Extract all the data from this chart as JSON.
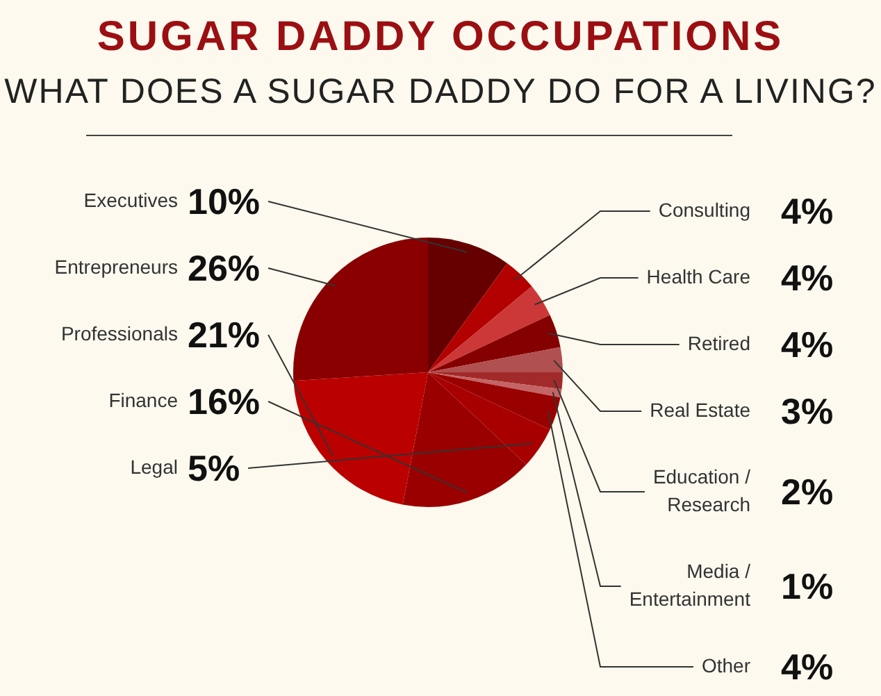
{
  "chart_data": {
    "type": "pie",
    "title": "SUGAR DADDY OCCUPATIONS",
    "subtitle": "WHAT DOES A SUGAR DADDY DO FOR A LIVING?",
    "categories": [
      "Executives",
      "Consulting",
      "Health Care",
      "Retired",
      "Real Estate",
      "Education / Research",
      "Media / Entertainment",
      "Other",
      "Legal",
      "Finance",
      "Professionals",
      "Entrepreneurs"
    ],
    "values": [
      10,
      4,
      4,
      4,
      3,
      2,
      1,
      4,
      5,
      16,
      21,
      26
    ],
    "colors": [
      "#660000",
      "#b30000",
      "#cc3838",
      "#850000",
      "#b05050",
      "#a32a2a",
      "#c46464",
      "#990000",
      "#a80000",
      "#9a0000",
      "#bb0000",
      "#8a0000"
    ],
    "value_labels": [
      "10%",
      "4%",
      "4%",
      "4%",
      "3%",
      "2%",
      "1%",
      "4%",
      "5%",
      "16%",
      "21%",
      "26%"
    ],
    "legend": false
  }
}
